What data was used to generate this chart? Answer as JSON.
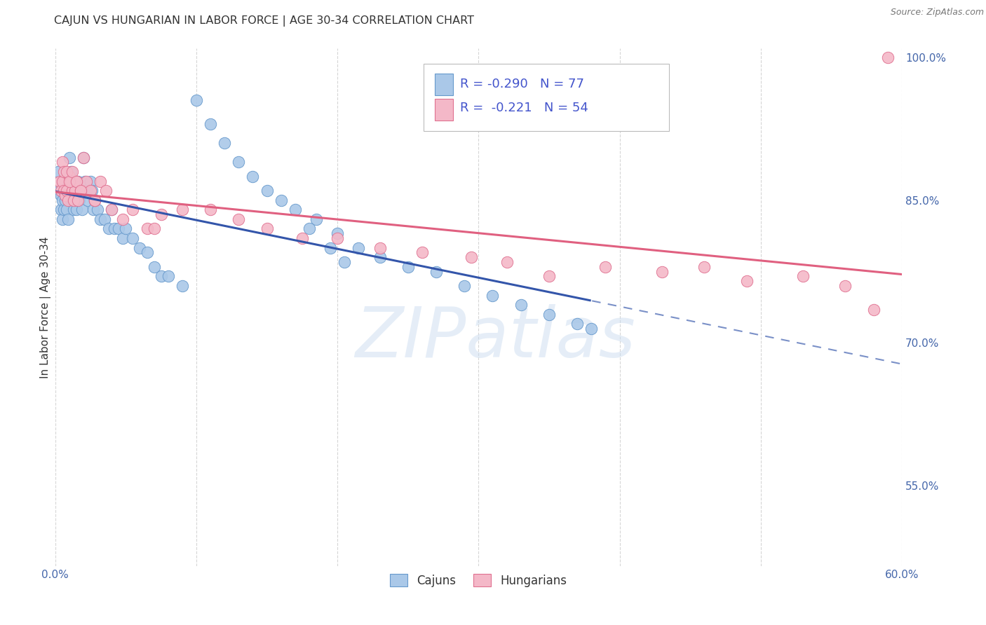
{
  "title": "CAJUN VS HUNGARIAN IN LABOR FORCE | AGE 30-34 CORRELATION CHART",
  "source": "Source: ZipAtlas.com",
  "ylabel": "In Labor Force | Age 30-34",
  "legend_labels": [
    "Cajuns",
    "Hungarians"
  ],
  "cajun_R": -0.29,
  "cajun_N": 77,
  "hungarian_R": -0.221,
  "hungarian_N": 54,
  "cajun_color": "#aac8e8",
  "hungarian_color": "#f4b8c8",
  "cajun_edge_color": "#6699cc",
  "hungarian_edge_color": "#e07090",
  "cajun_line_color": "#3355aa",
  "hungarian_line_color": "#e06080",
  "xlim": [
    0.0,
    0.6
  ],
  "ylim": [
    0.465,
    1.01
  ],
  "xtick_positions": [
    0.0,
    0.1,
    0.2,
    0.3,
    0.4,
    0.5,
    0.6
  ],
  "xticklabels": [
    "0.0%",
    "",
    "",
    "",
    "",
    "",
    "60.0%"
  ],
  "ytick_positions": [
    1.0,
    0.85,
    0.7,
    0.55
  ],
  "yticklabels": [
    "100.0%",
    "85.0%",
    "70.0%",
    "55.0%"
  ],
  "cajun_scatter_x": [
    0.002,
    0.003,
    0.004,
    0.004,
    0.005,
    0.005,
    0.005,
    0.006,
    0.006,
    0.007,
    0.007,
    0.008,
    0.008,
    0.009,
    0.009,
    0.01,
    0.01,
    0.011,
    0.011,
    0.012,
    0.012,
    0.013,
    0.013,
    0.014,
    0.015,
    0.015,
    0.016,
    0.017,
    0.018,
    0.019,
    0.02,
    0.021,
    0.022,
    0.023,
    0.025,
    0.026,
    0.027,
    0.028,
    0.03,
    0.032,
    0.035,
    0.038,
    0.04,
    0.042,
    0.045,
    0.048,
    0.05,
    0.055,
    0.06,
    0.065,
    0.07,
    0.075,
    0.08,
    0.09,
    0.1,
    0.11,
    0.12,
    0.13,
    0.14,
    0.15,
    0.16,
    0.17,
    0.185,
    0.2,
    0.215,
    0.23,
    0.25,
    0.27,
    0.29,
    0.31,
    0.33,
    0.35,
    0.37,
    0.18,
    0.195,
    0.205,
    0.38
  ],
  "cajun_scatter_y": [
    0.88,
    0.86,
    0.855,
    0.84,
    0.87,
    0.85,
    0.83,
    0.86,
    0.84,
    0.87,
    0.85,
    0.86,
    0.84,
    0.865,
    0.83,
    0.895,
    0.87,
    0.88,
    0.85,
    0.87,
    0.85,
    0.86,
    0.84,
    0.87,
    0.86,
    0.84,
    0.87,
    0.85,
    0.865,
    0.84,
    0.895,
    0.87,
    0.86,
    0.85,
    0.87,
    0.86,
    0.84,
    0.85,
    0.84,
    0.83,
    0.83,
    0.82,
    0.84,
    0.82,
    0.82,
    0.81,
    0.82,
    0.81,
    0.8,
    0.795,
    0.78,
    0.77,
    0.77,
    0.76,
    0.955,
    0.93,
    0.91,
    0.89,
    0.875,
    0.86,
    0.85,
    0.84,
    0.83,
    0.815,
    0.8,
    0.79,
    0.78,
    0.775,
    0.76,
    0.75,
    0.74,
    0.73,
    0.72,
    0.82,
    0.8,
    0.785,
    0.715
  ],
  "hungarian_scatter_x": [
    0.003,
    0.004,
    0.005,
    0.006,
    0.007,
    0.008,
    0.009,
    0.01,
    0.011,
    0.012,
    0.013,
    0.014,
    0.015,
    0.016,
    0.018,
    0.02,
    0.022,
    0.025,
    0.028,
    0.032,
    0.036,
    0.04,
    0.048,
    0.055,
    0.065,
    0.075,
    0.09,
    0.11,
    0.13,
    0.15,
    0.175,
    0.2,
    0.23,
    0.26,
    0.295,
    0.32,
    0.35,
    0.39,
    0.43,
    0.46,
    0.49,
    0.53,
    0.56,
    0.59,
    0.005,
    0.006,
    0.008,
    0.01,
    0.012,
    0.015,
    0.018,
    0.028,
    0.07,
    0.58
  ],
  "hungarian_scatter_y": [
    0.87,
    0.86,
    0.87,
    0.86,
    0.855,
    0.86,
    0.85,
    0.875,
    0.87,
    0.86,
    0.85,
    0.86,
    0.87,
    0.85,
    0.86,
    0.895,
    0.87,
    0.86,
    0.85,
    0.87,
    0.86,
    0.84,
    0.83,
    0.84,
    0.82,
    0.835,
    0.84,
    0.84,
    0.83,
    0.82,
    0.81,
    0.81,
    0.8,
    0.795,
    0.79,
    0.785,
    0.77,
    0.78,
    0.775,
    0.78,
    0.765,
    0.77,
    0.76,
    1.0,
    0.89,
    0.88,
    0.88,
    0.87,
    0.88,
    0.87,
    0.86,
    0.85,
    0.82,
    0.735
  ],
  "watermark_text": "ZIPatlas",
  "watermark_color": "#ccddf0",
  "watermark_alpha": 0.5,
  "bg_color": "#ffffff",
  "grid_color": "#cccccc",
  "title_color": "#333333",
  "title_fontsize": 11.5,
  "axis_label_color": "#333333",
  "tick_color": "#4466aa",
  "source_color": "#777777",
  "legend_text_color": "#4455cc"
}
